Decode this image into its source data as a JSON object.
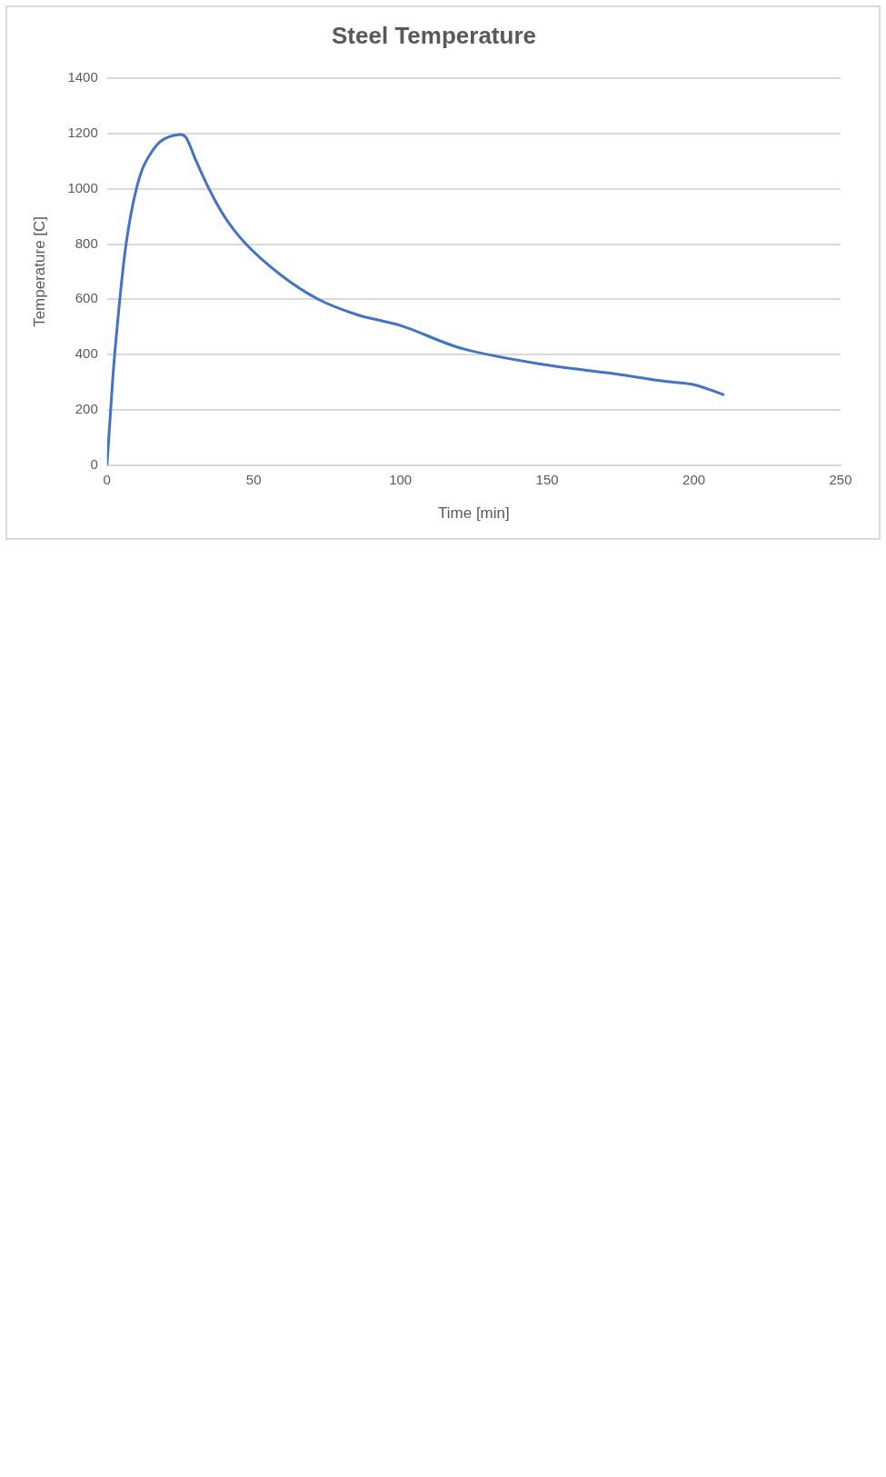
{
  "chart_data": {
    "type": "line",
    "title": "Steel Temperature",
    "xlabel": "Time [min]",
    "ylabel": "Temperature [C]",
    "x": [
      0,
      2,
      4,
      6,
      8,
      10,
      12,
      15,
      18,
      21,
      25,
      27,
      30,
      35,
      40,
      47,
      59,
      72,
      85,
      100,
      120,
      150,
      175,
      190,
      200,
      210
    ],
    "series": [
      {
        "color": "#4472c4",
        "values": [
          0,
          320,
          560,
          760,
          900,
          1000,
          1070,
          1130,
          1170,
          1188,
          1197,
          1185,
          1110,
          995,
          900,
          804,
          690,
          600,
          545,
          505,
          425,
          362,
          327,
          303,
          291,
          255
        ]
      }
    ],
    "xlim": [
      0,
      250
    ],
    "xticks": [
      0,
      50,
      100,
      150,
      200,
      250
    ],
    "ylim": [
      0,
      1400
    ],
    "yticks": [
      0,
      200,
      400,
      600,
      800,
      1000,
      1200,
      1400
    ],
    "grid": "y",
    "legend": false,
    "marker": "none",
    "line_style": "solid"
  }
}
